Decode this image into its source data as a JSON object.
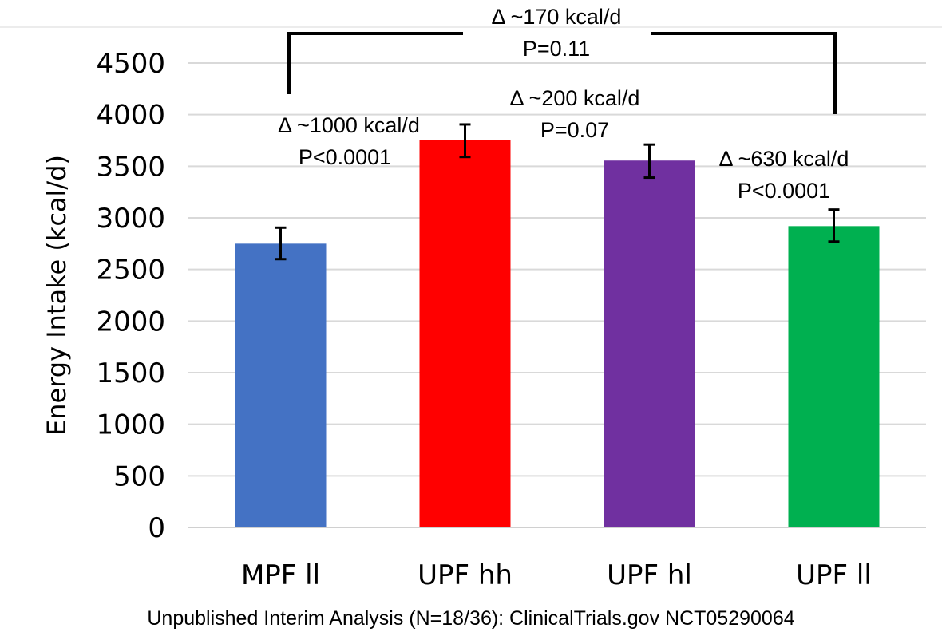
{
  "chart_data": {
    "type": "bar",
    "categories": [
      "MPF ll",
      "UPF hh",
      "UPF hl",
      "UPF ll"
    ],
    "values": [
      2750,
      3750,
      3555,
      2920
    ],
    "error_low": [
      2600,
      3590,
      3390,
      2770
    ],
    "error_high": [
      2905,
      3905,
      3710,
      3080
    ],
    "colors": [
      "#4472C4",
      "#FF0000",
      "#7030A0",
      "#00B050"
    ],
    "ylabel": "Energy Intake (kcal/d)",
    "xlabel": "",
    "ylim": [
      0,
      4500
    ],
    "yticks": [
      "0",
      "500",
      "1000",
      "1500",
      "2000",
      "2500",
      "3000",
      "3500",
      "4000",
      "4500"
    ],
    "grid": "horizontal",
    "annotations": [
      {
        "delta": "Δ ~170 kcal/d",
        "p": "P=0.11",
        "between": [
          "MPF ll",
          "UPF ll"
        ]
      },
      {
        "delta": "Δ ~1000 kcal/d",
        "p": "P<0.0001",
        "between": [
          "MPF ll",
          "UPF hh"
        ]
      },
      {
        "delta": "Δ ~200 kcal/d",
        "p": "P=0.07",
        "between": [
          "UPF hh",
          "UPF hl"
        ]
      },
      {
        "delta": "Δ ~630 kcal/d",
        "p": "P<0.0001",
        "between": [
          "UPF hl",
          "UPF ll"
        ]
      }
    ],
    "footnote": "Unpublished Interim Analysis (N=18/36): ClinicalTrials.gov NCT05290064"
  }
}
